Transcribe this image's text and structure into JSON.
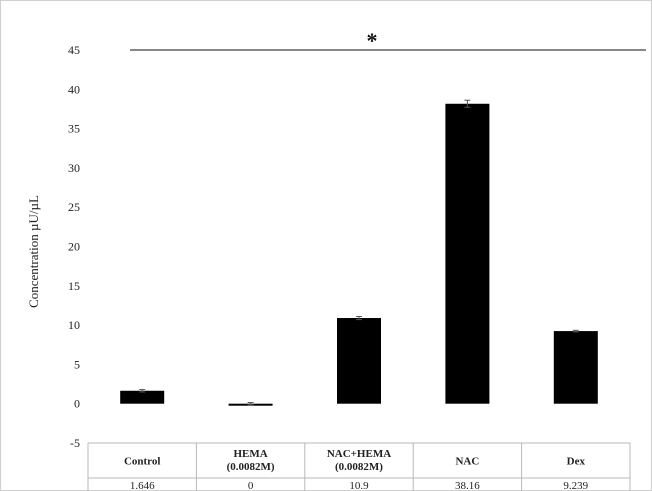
{
  "chart_data": {
    "type": "bar",
    "ylabel": "Concentration  µU/µL",
    "ylim": [
      -5,
      45
    ],
    "yticks": [
      -5,
      0,
      5,
      10,
      15,
      20,
      25,
      30,
      35,
      40,
      45
    ],
    "grid": false,
    "categories": [
      "Control",
      "HEMA (0.0082M)",
      "NAC+HEMA (0.0082M)",
      "NAC",
      "Dex"
    ],
    "category_lines": [
      [
        "Control"
      ],
      [
        "HEMA",
        "(0.0082M)"
      ],
      [
        "NAC+HEMA",
        "(0.0082M)"
      ],
      [
        "NAC"
      ],
      [
        "Dex"
      ]
    ],
    "values": [
      1.646,
      0,
      10.9,
      38.16,
      9.239
    ],
    "value_labels": [
      "1.646",
      "0",
      "10.9",
      "38.16",
      "9.239"
    ],
    "error": [
      0.15,
      0.15,
      0.2,
      0.45,
      0.1
    ],
    "bar_color": "#000000",
    "significance": "*"
  }
}
